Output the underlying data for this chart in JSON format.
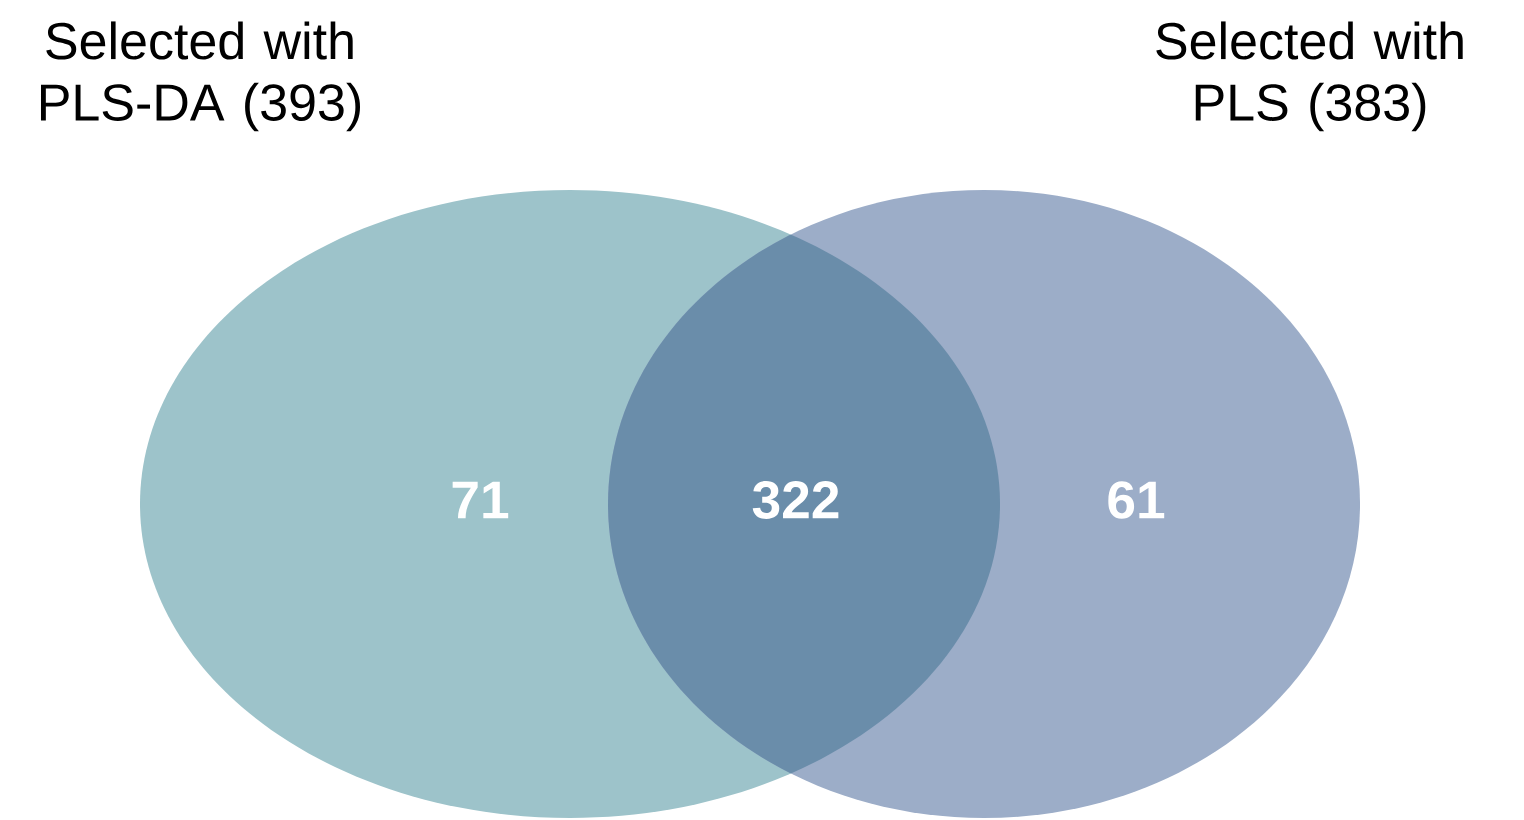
{
  "chart_data": {
    "type": "other",
    "categories": [
      null,
      null,
      null
    ],
    "values": [
      71,
      322,
      61
    ],
    "colors": [
      "#9dc3ca",
      "#6a8daa",
      "#9cadc8"
    ],
    "data_labels": true,
    "annotations": [
      "Selected with PLS-DA (393)",
      "Selected with PLS (383)"
    ]
  }
}
